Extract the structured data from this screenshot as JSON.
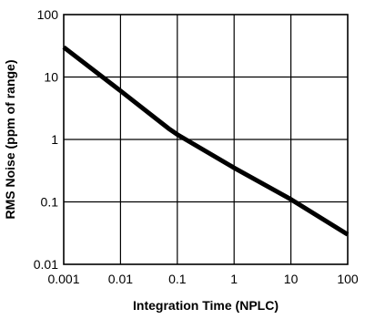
{
  "chart_data": {
    "type": "line",
    "title": "",
    "xlabel": "Integration Time (NPLC)",
    "ylabel": "RMS Noise (ppm of range)",
    "xscale": "log",
    "yscale": "log",
    "xlim": [
      0.001,
      100
    ],
    "ylim": [
      0.01,
      100
    ],
    "grid": true,
    "x_ticks": [
      "0.001",
      "0.01",
      "0.1",
      "1",
      "10",
      "100"
    ],
    "y_ticks": [
      "0.01",
      "0.1",
      "1",
      "10",
      "100"
    ],
    "series": [
      {
        "color": "#000000",
        "x": [
          0.001,
          0.01,
          0.07,
          0.1,
          1,
          10,
          100
        ],
        "y": [
          30,
          6,
          1.5,
          1.2,
          0.35,
          0.11,
          0.03
        ]
      }
    ]
  }
}
